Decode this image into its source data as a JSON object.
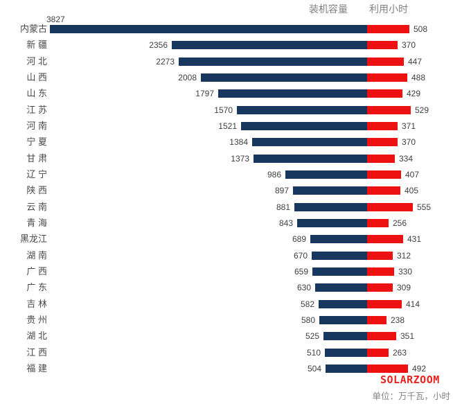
{
  "chart_data": {
    "type": "bar",
    "orientation": "horizontal-bidirectional-tornado",
    "categories": [
      "内蒙古",
      "新 疆",
      "河 北",
      "山 西",
      "山 东",
      "江 苏",
      "河 南",
      "宁 夏",
      "甘 肃",
      "辽 宁",
      "陕 西",
      "云 南",
      "青 海",
      "黑龙江",
      "湖 南",
      "广 西",
      "广 东",
      "吉 林",
      "贵 州",
      "湖 北",
      "江 西",
      "福 建"
    ],
    "series": [
      {
        "name": "装机容量",
        "side": "left",
        "color": "#17375e",
        "values": [
          3827,
          2356,
          2273,
          2008,
          1797,
          1570,
          1521,
          1384,
          1373,
          986,
          897,
          881,
          843,
          689,
          670,
          659,
          630,
          582,
          580,
          525,
          510,
          504
        ]
      },
      {
        "name": "利用小时",
        "side": "right",
        "color": "#ee1111",
        "values": [
          508,
          370,
          447,
          488,
          429,
          529,
          371,
          370,
          334,
          407,
          405,
          555,
          256,
          431,
          312,
          330,
          309,
          414,
          238,
          351,
          263,
          492
        ]
      }
    ],
    "value_labels_shown": true,
    "grid": false,
    "legend_position": "top-right-headers",
    "brand": "SOLARZOOM",
    "unit_note": "单位：万千瓦，小时",
    "colors": {
      "capacity_bar": "#17375e",
      "hours_bar": "#ee1111",
      "brand_text": "#e8231d",
      "value_text": "#404040",
      "category_text": "#4a4a4a",
      "header_text": "#808080",
      "background": "#ffffff"
    }
  }
}
